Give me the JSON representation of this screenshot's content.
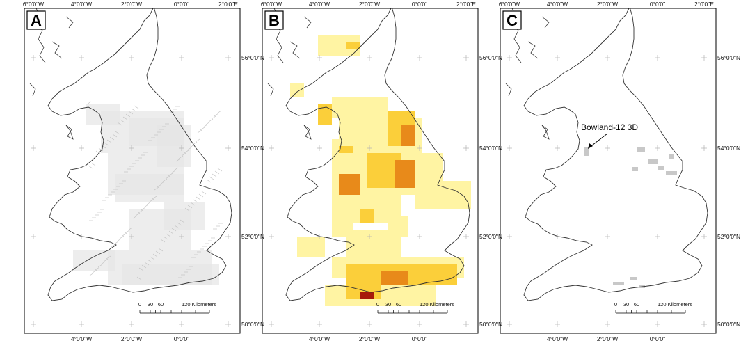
{
  "figure": {
    "panels": [
      {
        "id": "A",
        "label": "A",
        "variant": "grey-coverage",
        "top_ticks": [
          "6°0'0\"W",
          "4°0'0\"W",
          "2°0'0\"W",
          "0°0'0\"",
          "2°0'0\"E"
        ],
        "bottom_ticks": [
          "4°0'0\"W",
          "2°0'0\"W",
          "0°0'0\""
        ],
        "right_ticks": [
          "56°0'0\"N",
          "54°0'0\"N",
          "52°0'0\"N",
          "50°0'0\"N"
        ],
        "scale": {
          "ticks": [
            "0",
            "30",
            "60",
            "120 Kilometers"
          ]
        }
      },
      {
        "id": "B",
        "label": "B",
        "variant": "density-heatmap",
        "top_ticks": [
          "6°0'0\"W",
          "4°0'0\"W",
          "2°0'0\"W",
          "0°0'0\"",
          "2°0'0\"E"
        ],
        "bottom_ticks": [
          "4°0'0\"W",
          "2°0'0\"W",
          "0°0'0\""
        ],
        "right_ticks": [
          "56°0'0\"N",
          "54°0'0\"N",
          "52°0'0\"N",
          "50°0'0\"N"
        ],
        "scale": {
          "ticks": [
            "0",
            "30",
            "60",
            "120 Kilometers"
          ]
        }
      },
      {
        "id": "C",
        "label": "C",
        "variant": "3d-surveys",
        "top_ticks": [
          "6°0'0\"W",
          "4°0'0\"W",
          "2°0'0\"W",
          "0°0'0\"",
          "2°0'0\"E"
        ],
        "bottom_ticks": [
          "4°0'0\"W",
          "2°0'0\"W",
          "0°0'0\""
        ],
        "right_ticks": [
          "56°0'0\"N",
          "54°0'0\"N",
          "52°0'0\"N",
          "50°0'0\"N"
        ],
        "scale": {
          "ticks": [
            "0",
            "30",
            "60",
            "120 Kilometers"
          ]
        },
        "annotation": "Bowland-12 3D"
      }
    ],
    "colors": {
      "coast": "#333333",
      "frame": "#000000",
      "grey_data": "#c8c8c8",
      "heat_low": "#fff4a3",
      "heat_mid": "#fbcf3a",
      "heat_high": "#e88a1a",
      "heat_peak": "#a81a0a"
    }
  }
}
